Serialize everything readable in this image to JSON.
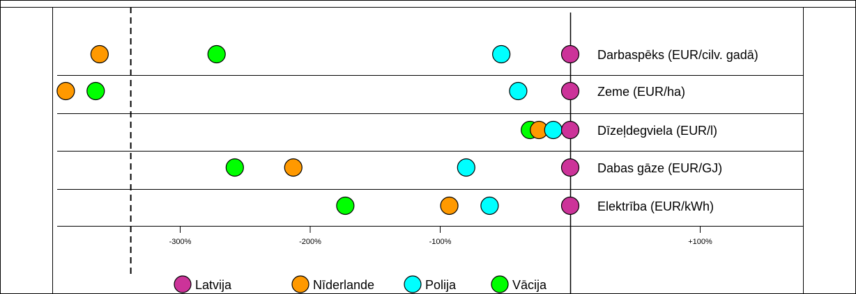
{
  "chart_data": {
    "type": "scatter",
    "title": "",
    "xlabel": "",
    "ylabel": "",
    "x_unit": "percent difference relative to Latvija",
    "xlim": [
      -395,
      190
    ],
    "x_ticks": [
      -300,
      -200,
      -100,
      100
    ],
    "x_tick_labels": [
      "-300%",
      "-200%",
      "-100%",
      "+100%"
    ],
    "reference_line_x": -338,
    "grid": "horizontal row separators",
    "legend_position": "bottom",
    "categories": [
      "Darbaspēks (EUR/cilv. gadā)",
      "Zeme (EUR/ha)",
      "Dīzeļdegviela (EUR/l)",
      "Dabas gāze (EUR/GJ)",
      "Elektrība (EUR/kWh)"
    ],
    "series": [
      {
        "name": "Latvija",
        "color": "#cc3399",
        "values": [
          0,
          0,
          0,
          0,
          0
        ]
      },
      {
        "name": "Nīderlande",
        "color": "#ff9900",
        "values": [
          -362,
          -388,
          -24,
          -213,
          -93
        ]
      },
      {
        "name": "Polija",
        "color": "#00ffff",
        "values": [
          -53,
          -40,
          -13,
          -80,
          -62
        ]
      },
      {
        "name": "Vācija",
        "color": "#00ff00",
        "values": [
          -272,
          -365,
          -31,
          -258,
          -173
        ]
      }
    ]
  }
}
